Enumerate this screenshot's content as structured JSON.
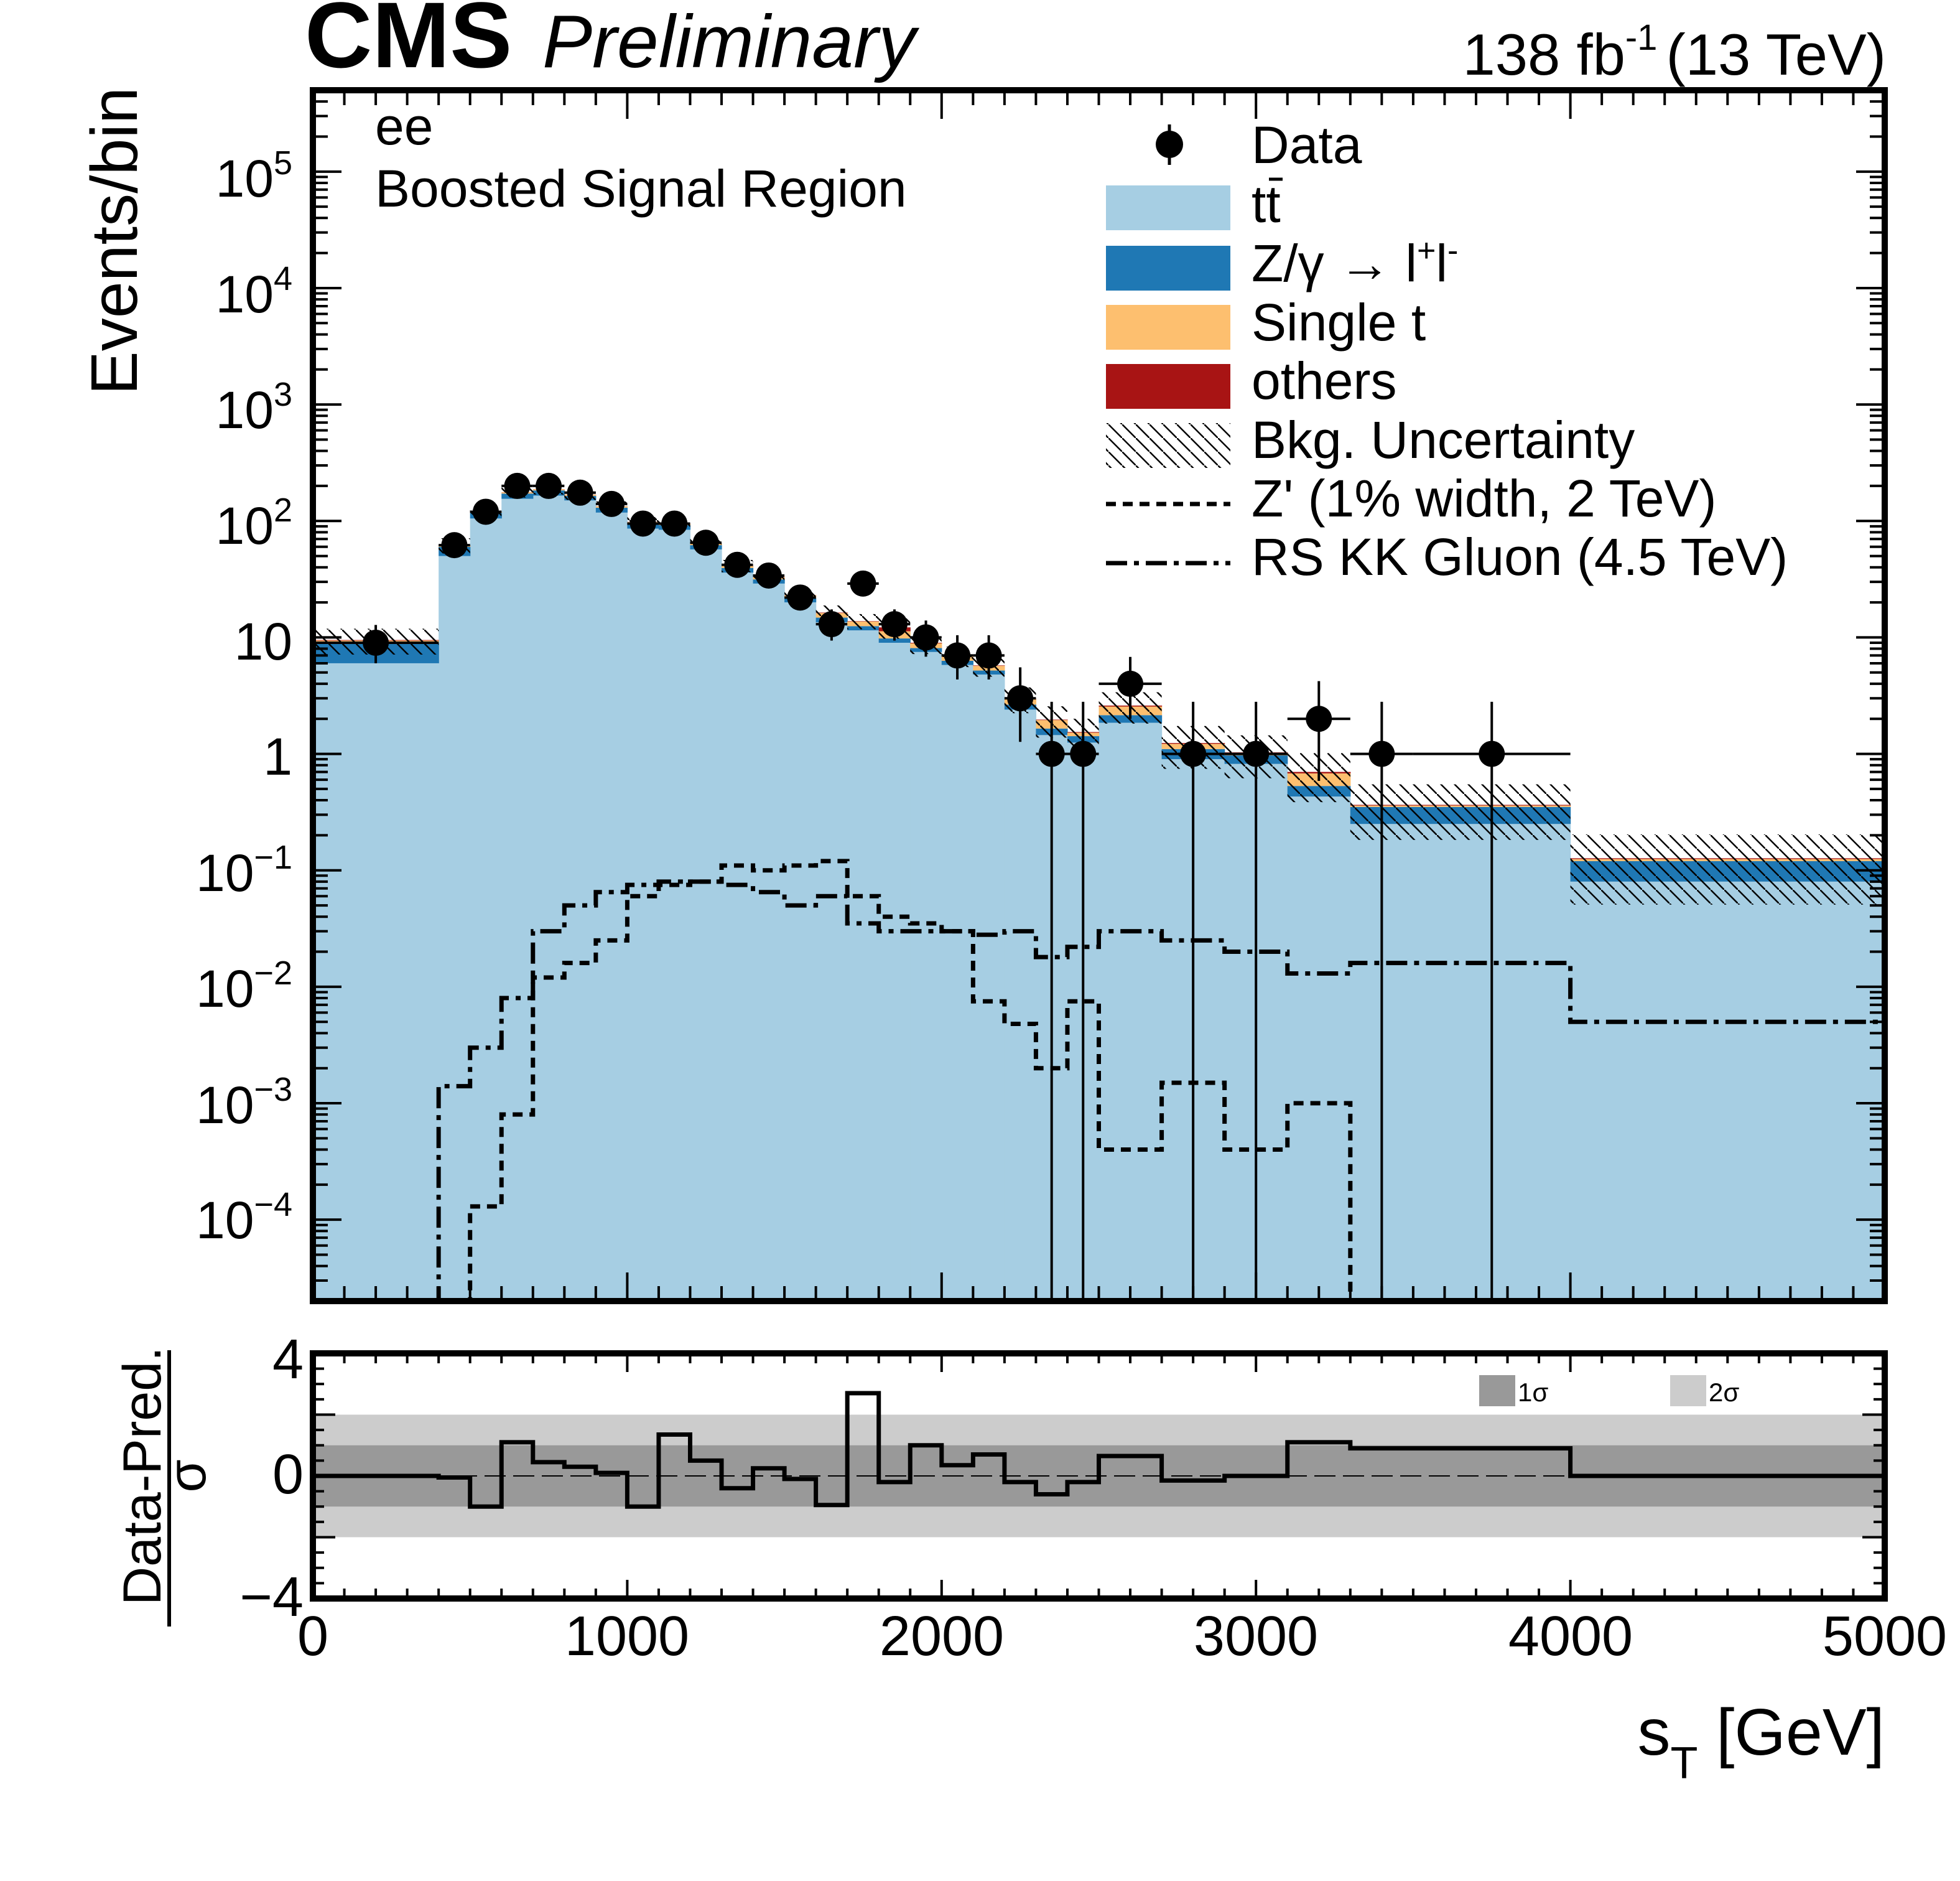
{
  "header": {
    "experiment": "CMS",
    "status": "Preliminary",
    "luminosity": "138 fb",
    "luminosity_exp": "-1",
    "energy": "(13 TeV)"
  },
  "region": {
    "channel": "ee",
    "name": "Boosted Signal Region"
  },
  "legend": {
    "data": "Data",
    "ttbar": "tt",
    "dy_main": "Z/γ  → l",
    "dy_plus": "+",
    "dy_l": "l",
    "dy_minus": "-",
    "single_top": "Single t",
    "others": "others",
    "uncertainty": "Bkg. Uncertainty",
    "zprime": "Z' (1% width, 2 TeV)",
    "rsgluon": "RS KK Gluon (4.5 TeV)"
  },
  "ratio_legend": {
    "one_sigma": "1σ",
    "two_sigma": "2σ"
  },
  "colors": {
    "ttbar": "#a6cee3",
    "dy": "#1f78b4",
    "single_top": "#fdbf6f",
    "others": "#a81414",
    "band_1sigma": "#999999",
    "band_2sigma": "#cccccc"
  },
  "chart_data": {
    "type": "bar",
    "title": "CMS Preliminary",
    "xlabel_main": "s",
    "xlabel_sub": "T",
    "xlabel_unit": " [GeV]",
    "ylabel": "Events/bin",
    "yscale": "log",
    "xlim": [
      0,
      5000
    ],
    "ylim": [
      2e-05,
      500000
    ],
    "bin_edges": [
      0,
      400,
      500,
      600,
      700,
      800,
      900,
      1000,
      1100,
      1200,
      1300,
      1400,
      1500,
      1600,
      1700,
      1800,
      1900,
      2000,
      2100,
      2200,
      2300,
      2400,
      2500,
      2700,
      2900,
      3100,
      3300,
      4000,
      5000
    ],
    "series": [
      {
        "name": "tt",
        "values": [
          6,
          50,
          105,
          155,
          165,
          150,
          118,
          86,
          84,
          57,
          36,
          29,
          20,
          13.5,
          11.5,
          9,
          7.5,
          5.8,
          4.8,
          2.4,
          1.45,
          1.25,
          1.85,
          0.9,
          0.82,
          0.43,
          0.25,
          0.08
        ]
      },
      {
        "name": "Z/γ → l+l-",
        "values": [
          3,
          10,
          12,
          17,
          18,
          14,
          12,
          9,
          8,
          5,
          3.5,
          2.5,
          1.8,
          1.3,
          1,
          0.8,
          0.6,
          0.5,
          0.4,
          0.25,
          0.2,
          0.17,
          0.3,
          0.2,
          0.15,
          0.1,
          0.1,
          0.04
        ]
      },
      {
        "name": "Single t",
        "values": [
          0.4,
          1.5,
          2.5,
          4,
          4,
          4,
          3.5,
          3,
          2.5,
          2,
          1.6,
          1.4,
          1.2,
          1.4,
          1.2,
          1.5,
          0.8,
          0.6,
          0.5,
          0.3,
          0.3,
          0.1,
          0.4,
          0.12,
          0.05,
          0.15,
          0.01,
          0.005
        ]
      },
      {
        "name": "others",
        "values": [
          0.1,
          0.3,
          0.4,
          0.5,
          0.5,
          0.5,
          0.4,
          0.3,
          0.3,
          0.2,
          0.2,
          0.15,
          0.1,
          0.15,
          0.1,
          0.9,
          0.1,
          0.05,
          0.05,
          0.03,
          0.02,
          0.02,
          0.05,
          0.02,
          0.01,
          0.02,
          0.005,
          0.002
        ]
      }
    ],
    "uncertainty_rel": [
      0.25,
      0.15,
      0.12,
      0.1,
      0.1,
      0.1,
      0.1,
      0.1,
      0.1,
      0.1,
      0.12,
      0.12,
      0.12,
      0.15,
      0.15,
      0.2,
      0.2,
      0.2,
      0.2,
      0.25,
      0.3,
      0.3,
      0.3,
      0.4,
      0.4,
      0.45,
      0.5,
      0.6
    ],
    "data_points": [
      {
        "x": 200,
        "xerr": 200,
        "y": 9
      },
      {
        "x": 450,
        "xerr": 50,
        "y": 62
      },
      {
        "x": 550,
        "xerr": 50,
        "y": 120
      },
      {
        "x": 650,
        "xerr": 50,
        "y": 200
      },
      {
        "x": 750,
        "xerr": 50,
        "y": 200
      },
      {
        "x": 850,
        "xerr": 50,
        "y": 175
      },
      {
        "x": 950,
        "xerr": 50,
        "y": 140
      },
      {
        "x": 1050,
        "xerr": 50,
        "y": 95
      },
      {
        "x": 1150,
        "xerr": 50,
        "y": 95
      },
      {
        "x": 1250,
        "xerr": 50,
        "y": 65
      },
      {
        "x": 1350,
        "xerr": 50,
        "y": 42
      },
      {
        "x": 1450,
        "xerr": 50,
        "y": 34
      },
      {
        "x": 1550,
        "xerr": 50,
        "y": 22
      },
      {
        "x": 1650,
        "xerr": 50,
        "y": 13
      },
      {
        "x": 1750,
        "xerr": 50,
        "y": 29
      },
      {
        "x": 1850,
        "xerr": 50,
        "y": 13
      },
      {
        "x": 1950,
        "xerr": 50,
        "y": 10
      },
      {
        "x": 2050,
        "xerr": 50,
        "y": 7
      },
      {
        "x": 2150,
        "xerr": 50,
        "y": 7
      },
      {
        "x": 2250,
        "xerr": 50,
        "y": 3
      },
      {
        "x": 2350,
        "xerr": 50,
        "y": 1
      },
      {
        "x": 2450,
        "xerr": 50,
        "y": 1
      },
      {
        "x": 2600,
        "xerr": 100,
        "y": 4
      },
      {
        "x": 2800,
        "xerr": 100,
        "y": 1
      },
      {
        "x": 3000,
        "xerr": 100,
        "y": 1
      },
      {
        "x": 3200,
        "xerr": 100,
        "y": 2
      },
      {
        "x": 3400,
        "xerr": 100,
        "y": 1
      },
      {
        "x": 3750,
        "xerr": 250,
        "y": 1
      }
    ],
    "zprime_values": [
      2e-05,
      2e-05,
      0.00013,
      0.0008,
      0.012,
      0.016,
      0.025,
      0.06,
      0.075,
      0.08,
      0.11,
      0.1,
      0.11,
      0.12,
      0.06,
      0.04,
      0.035,
      0.03,
      0.0075,
      0.0048,
      0.002,
      0.0075,
      0.0004,
      0.0015,
      0.0004,
      0.001,
      2e-05,
      2e-05
    ],
    "rsgluon_values": [
      2e-05,
      0.0014,
      0.003,
      0.008,
      0.03,
      0.05,
      0.065,
      0.075,
      0.08,
      0.08,
      0.075,
      0.065,
      0.05,
      0.06,
      0.035,
      0.03,
      0.03,
      0.03,
      0.028,
      0.03,
      0.018,
      0.022,
      0.03,
      0.025,
      0.02,
      0.013,
      0.016,
      0.005
    ],
    "ytick_labels": [
      "10^-4",
      "10^-3",
      "10^-2",
      "10^-1",
      "1",
      "10",
      "10^2",
      "10^3",
      "10^4",
      "10^5"
    ],
    "ratio": {
      "ylabel_num": "Data-Pred.",
      "ylabel_den": "σ",
      "ylim": [
        -4,
        4
      ],
      "ytick_labels": [
        "−4",
        "0",
        "4"
      ],
      "xtick_labels": [
        "0",
        "1000",
        "2000",
        "3000",
        "4000",
        "5000"
      ],
      "values": [
        0,
        -0.05,
        -1,
        1.1,
        0.45,
        0.3,
        0.1,
        -1,
        1.35,
        0.5,
        -0.4,
        0.25,
        -0.1,
        -0.95,
        2.7,
        -0.2,
        1,
        0.35,
        0.7,
        -0.2,
        -0.6,
        -0.2,
        0.65,
        -0.15,
        0,
        1.1,
        0.9,
        0
      ]
    }
  }
}
